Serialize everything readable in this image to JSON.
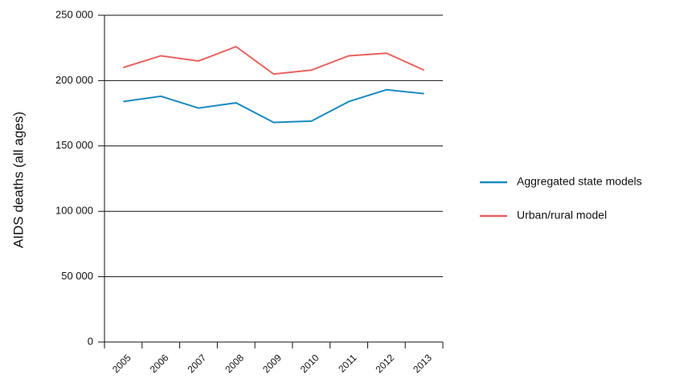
{
  "chart_data": {
    "type": "line",
    "y_label": "AIDS deaths (all ages)",
    "categories": [
      "2005",
      "2006",
      "2007",
      "2008",
      "2009",
      "2010",
      "2011",
      "2012",
      "2013"
    ],
    "series": [
      {
        "name": "Aggregated state models",
        "color": "#1b8bbf",
        "values": [
          184000,
          188000,
          179000,
          183000,
          168000,
          169000,
          184000,
          193000,
          190000
        ]
      },
      {
        "name": "Urban/rural model",
        "color": "#e8615f",
        "values": [
          210000,
          219000,
          215000,
          226000,
          205000,
          208000,
          219000,
          221000,
          208000
        ]
      }
    ],
    "ylim": [
      0,
      250000
    ],
    "yticks": [
      {
        "value": 0,
        "label": "0"
      },
      {
        "value": 50000,
        "label": "50 000"
      },
      {
        "value": 100000,
        "label": "100 000"
      },
      {
        "value": 150000,
        "label": "150 000"
      },
      {
        "value": 200000,
        "label": "200 000"
      },
      {
        "value": 250000,
        "label": "250 000"
      }
    ],
    "grid": true,
    "legend": "right"
  }
}
